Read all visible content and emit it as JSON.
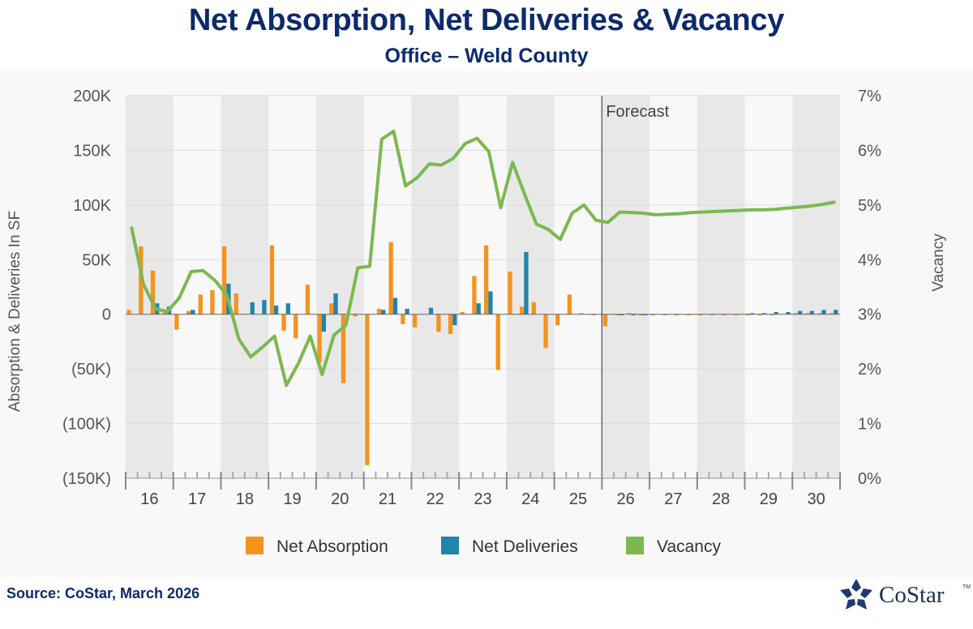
{
  "header": {
    "title": "Net Absorption, Net Deliveries & Vacancy",
    "subtitle": "Office – Weld County"
  },
  "footer": {
    "source": "Source: CoStar, March 2026",
    "logo_text": "CoStar",
    "logo_tm": "TM"
  },
  "colors": {
    "absorption": "#f6921e",
    "deliveries": "#2284a8",
    "vacancy": "#7cb84f",
    "band": "#e8e8e8",
    "grid": "#dddddd",
    "axis_text": "#555555"
  },
  "chart_data": {
    "type": "bar+line",
    "title": "Net Absorption, Net Deliveries & Vacancy",
    "subtitle": "Office – Weld County",
    "ylabel": "Absorption & Deliveries In SF",
    "y2label": "Vacancy",
    "ylim": [
      -150000,
      200000
    ],
    "y2lim": [
      0,
      7
    ],
    "y_ticks": [
      {
        "value": 200000,
        "label": "200K"
      },
      {
        "value": 150000,
        "label": "150K"
      },
      {
        "value": 100000,
        "label": "100K"
      },
      {
        "value": 50000,
        "label": "50K"
      },
      {
        "value": 0,
        "label": "0"
      },
      {
        "value": -50000,
        "label": "(50K)"
      },
      {
        "value": -100000,
        "label": "(100K)"
      },
      {
        "value": -150000,
        "label": "(150K)"
      }
    ],
    "y2_ticks": [
      "0%",
      "1%",
      "2%",
      "3%",
      "4%",
      "5%",
      "6%",
      "7%"
    ],
    "years": [
      "16",
      "17",
      "18",
      "19",
      "20",
      "21",
      "22",
      "23",
      "24",
      "25",
      "26",
      "27",
      "28",
      "29",
      "30"
    ],
    "quarters_per_year": 4,
    "forecast_label": "Forecast",
    "forecast_start_index": 40,
    "legend_position": "bottom",
    "series": [
      {
        "name": "Net Absorption",
        "type": "bar",
        "values": [
          4000,
          62000,
          40000,
          4000,
          -14000,
          3000,
          18000,
          22000,
          62000,
          19000,
          0,
          0,
          63000,
          -15000,
          -22000,
          27000,
          -44000,
          10000,
          -63000,
          -2000,
          -138000,
          5000,
          66000,
          -9000,
          -12000,
          0,
          -16000,
          -18000,
          2000,
          35000,
          63000,
          -51000,
          39000,
          7000,
          11000,
          -31000,
          -10000,
          18000,
          1000,
          -1000,
          -11000,
          -1000,
          1000,
          -1000,
          -1000,
          -1000,
          -1000,
          -1000,
          -1000,
          -1000,
          -1000,
          -1000,
          -1000,
          -1000,
          -1000,
          0,
          1000,
          1000,
          1000,
          1000
        ]
      },
      {
        "name": "Net Deliveries",
        "type": "bar",
        "values": [
          0,
          0,
          10000,
          7000,
          0,
          4000,
          0,
          0,
          28000,
          0,
          11000,
          13000,
          8000,
          10000,
          0,
          0,
          -16000,
          19000,
          0,
          0,
          0,
          4000,
          15000,
          5000,
          0,
          6000,
          0,
          -10000,
          0,
          10000,
          21000,
          0,
          0,
          57000,
          0,
          0,
          0,
          0,
          0,
          0,
          0,
          -1000,
          -1000,
          -1000,
          0,
          0,
          0,
          0,
          0,
          0,
          0,
          0,
          1000,
          1000,
          2000,
          2000,
          3000,
          3000,
          4000,
          4000
        ]
      },
      {
        "name": "Vacancy",
        "type": "line",
        "unit": "%",
        "values": [
          4.58,
          3.55,
          3.1,
          3.05,
          3.3,
          3.78,
          3.8,
          3.62,
          3.35,
          2.55,
          2.22,
          2.4,
          2.6,
          1.7,
          2.1,
          2.6,
          1.9,
          2.62,
          2.8,
          3.85,
          3.88,
          6.2,
          6.35,
          5.35,
          5.5,
          5.75,
          5.73,
          5.85,
          6.12,
          6.22,
          5.98,
          4.95,
          5.78,
          5.2,
          4.65,
          4.55,
          4.37,
          4.85,
          5.0,
          4.72,
          4.68,
          4.87,
          4.86,
          4.85,
          4.82,
          4.83,
          4.84,
          4.86,
          4.87,
          4.88,
          4.89,
          4.9,
          4.91,
          4.91,
          4.92,
          4.94,
          4.96,
          4.98,
          5.01,
          5.05
        ]
      }
    ]
  }
}
